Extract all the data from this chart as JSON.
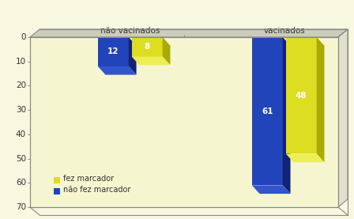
{
  "categories": [
    "não vacinados",
    "vacinados"
  ],
  "series": {
    "não fez marcador": [
      12,
      61
    ],
    "fez marcador": [
      8,
      48
    ]
  },
  "bar_colors": {
    "não fez marcador": "#2244bb",
    "fez marcador": "#dddd22"
  },
  "bar_dark_colors": {
    "não fez marcador": "#112277",
    "fez marcador": "#aaaa00"
  },
  "bar_top_colors": {
    "não fez marcador": "#3355cc",
    "fez marcador": "#eeee55"
  },
  "ylim": [
    0,
    70
  ],
  "yticks": [
    0,
    10,
    20,
    30,
    40,
    50,
    60,
    70
  ],
  "background_color": "#f8f8e0",
  "wall_color": "#f5f5d0",
  "floor_color": "#d8d8c0",
  "legend_labels": [
    "não fez marcador",
    "fez marcador"
  ],
  "label_fontsize": 7.5,
  "axis_fontsize": 7.5,
  "legend_fontsize": 7.0
}
